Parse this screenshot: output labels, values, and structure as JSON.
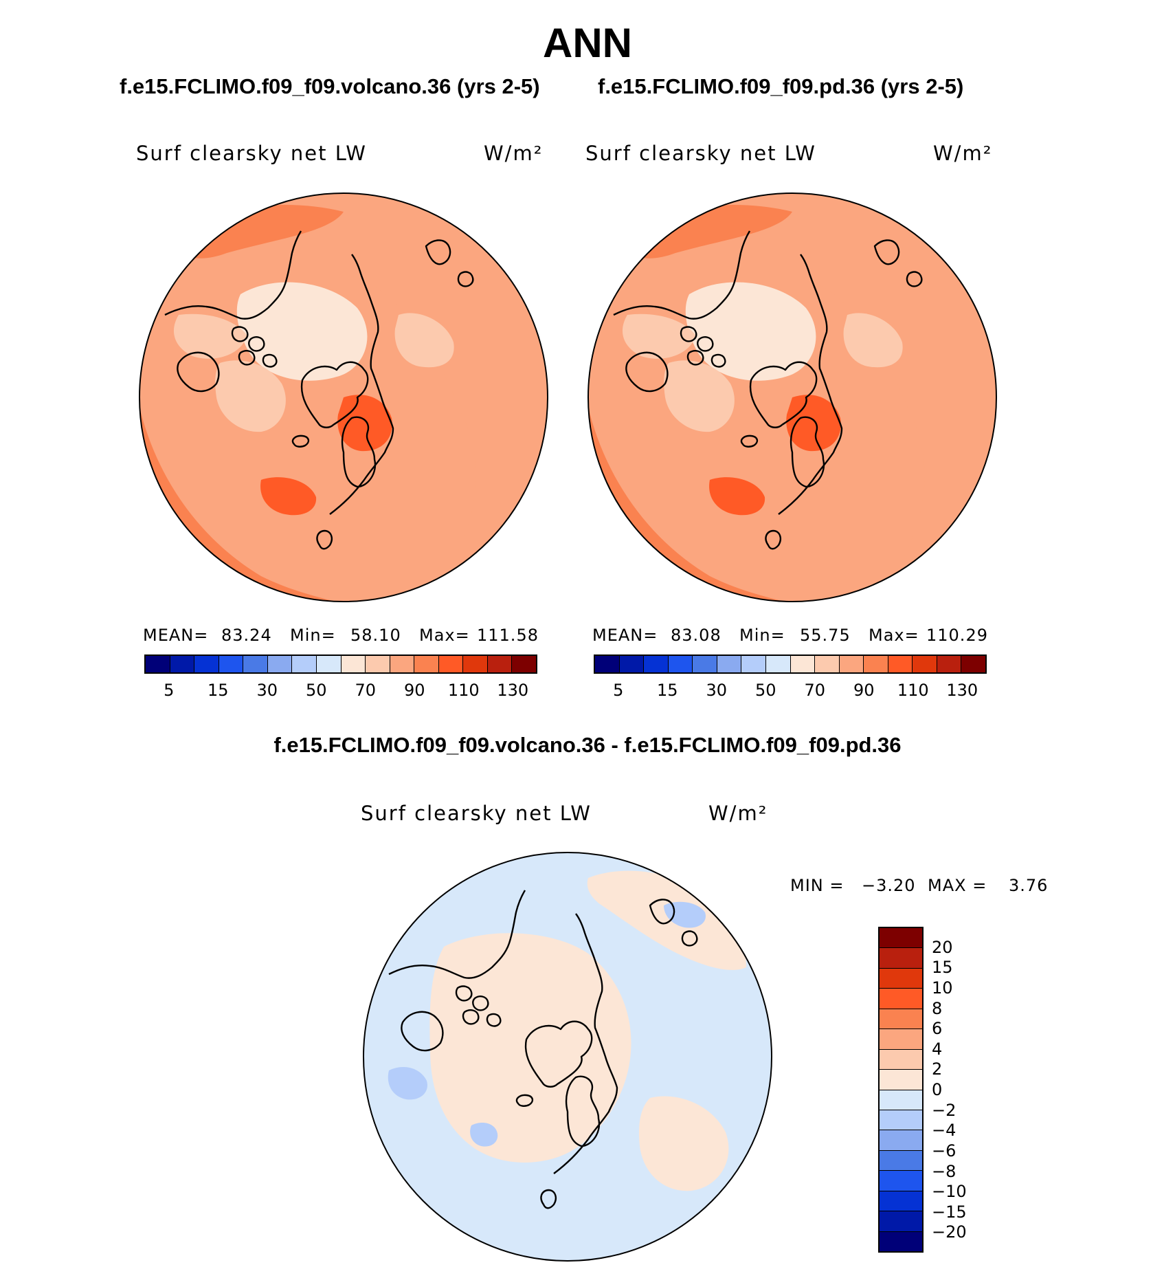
{
  "figure": {
    "title": "ANN",
    "left_case": "f.e15.FCLIMO.f09_f09.volcano.36 (yrs 2-5)",
    "right_case": "f.e15.FCLIMO.f09_f09.pd.36 (yrs 2-5)",
    "diff_title": "f.e15.FCLIMO.f09_f09.volcano.36 - f.e15.FCLIMO.f09_f09.pd.36"
  },
  "chart_data": [
    {
      "type": "heatmap",
      "panel": "volcano",
      "projection": "north-polar stereographic",
      "variable": "Surf clearsky net LW",
      "units": "W/m²",
      "stats": {
        "mean_label": "MEAN=",
        "mean": "83.24",
        "min_label": "Min=",
        "min": "58.10",
        "max_label": "Max=",
        "max": "111.58"
      },
      "colorbar_ticks": [
        "5",
        "15",
        "30",
        "50",
        "70",
        "90",
        "110",
        "130"
      ],
      "colors": [
        "#000078",
        "#0019a8",
        "#0532d4",
        "#1e55ee",
        "#4a7ae6",
        "#8aaaf0",
        "#b4cdfa",
        "#d7e8fa",
        "#fce6d6",
        "#fccaae",
        "#fba67f",
        "#fa8250",
        "#ff5a26",
        "#e0380c",
        "#b9200e",
        "#7d0000"
      ]
    },
    {
      "type": "heatmap",
      "panel": "pd",
      "projection": "north-polar stereographic",
      "variable": "Surf clearsky net LW",
      "units": "W/m²",
      "stats": {
        "mean_label": "MEAN=",
        "mean": "83.08",
        "min_label": "Min=",
        "min": "55.75",
        "max_label": "Max=",
        "max": "110.29"
      },
      "colorbar_ticks": [
        "5",
        "15",
        "30",
        "50",
        "70",
        "90",
        "110",
        "130"
      ],
      "colors": [
        "#000078",
        "#0019a8",
        "#0532d4",
        "#1e55ee",
        "#4a7ae6",
        "#8aaaf0",
        "#b4cdfa",
        "#d7e8fa",
        "#fce6d6",
        "#fccaae",
        "#fba67f",
        "#fa8250",
        "#ff5a26",
        "#e0380c",
        "#b9200e",
        "#7d0000"
      ]
    },
    {
      "type": "heatmap",
      "panel": "difference",
      "projection": "north-polar stereographic",
      "variable": "Surf clearsky net LW",
      "units": "W/m²",
      "stats": {
        "min_label": "MIN =",
        "min": "−3.20",
        "max_label": "MAX =",
        "max": "3.76"
      },
      "colorbar_ticks": [
        "20",
        "15",
        "10",
        "8",
        "6",
        "4",
        "2",
        "0",
        "−2",
        "−4",
        "−6",
        "−8",
        "−10",
        "−15",
        "−20"
      ],
      "colors": [
        "#7d0000",
        "#b9200e",
        "#e0380c",
        "#ff5a26",
        "#fa8250",
        "#fba67f",
        "#fccaae",
        "#fce6d6",
        "#d7e8fa",
        "#b4cdfa",
        "#8aaaf0",
        "#4a7ae6",
        "#1e55ee",
        "#0532d4",
        "#0019a8",
        "#000078"
      ]
    }
  ]
}
